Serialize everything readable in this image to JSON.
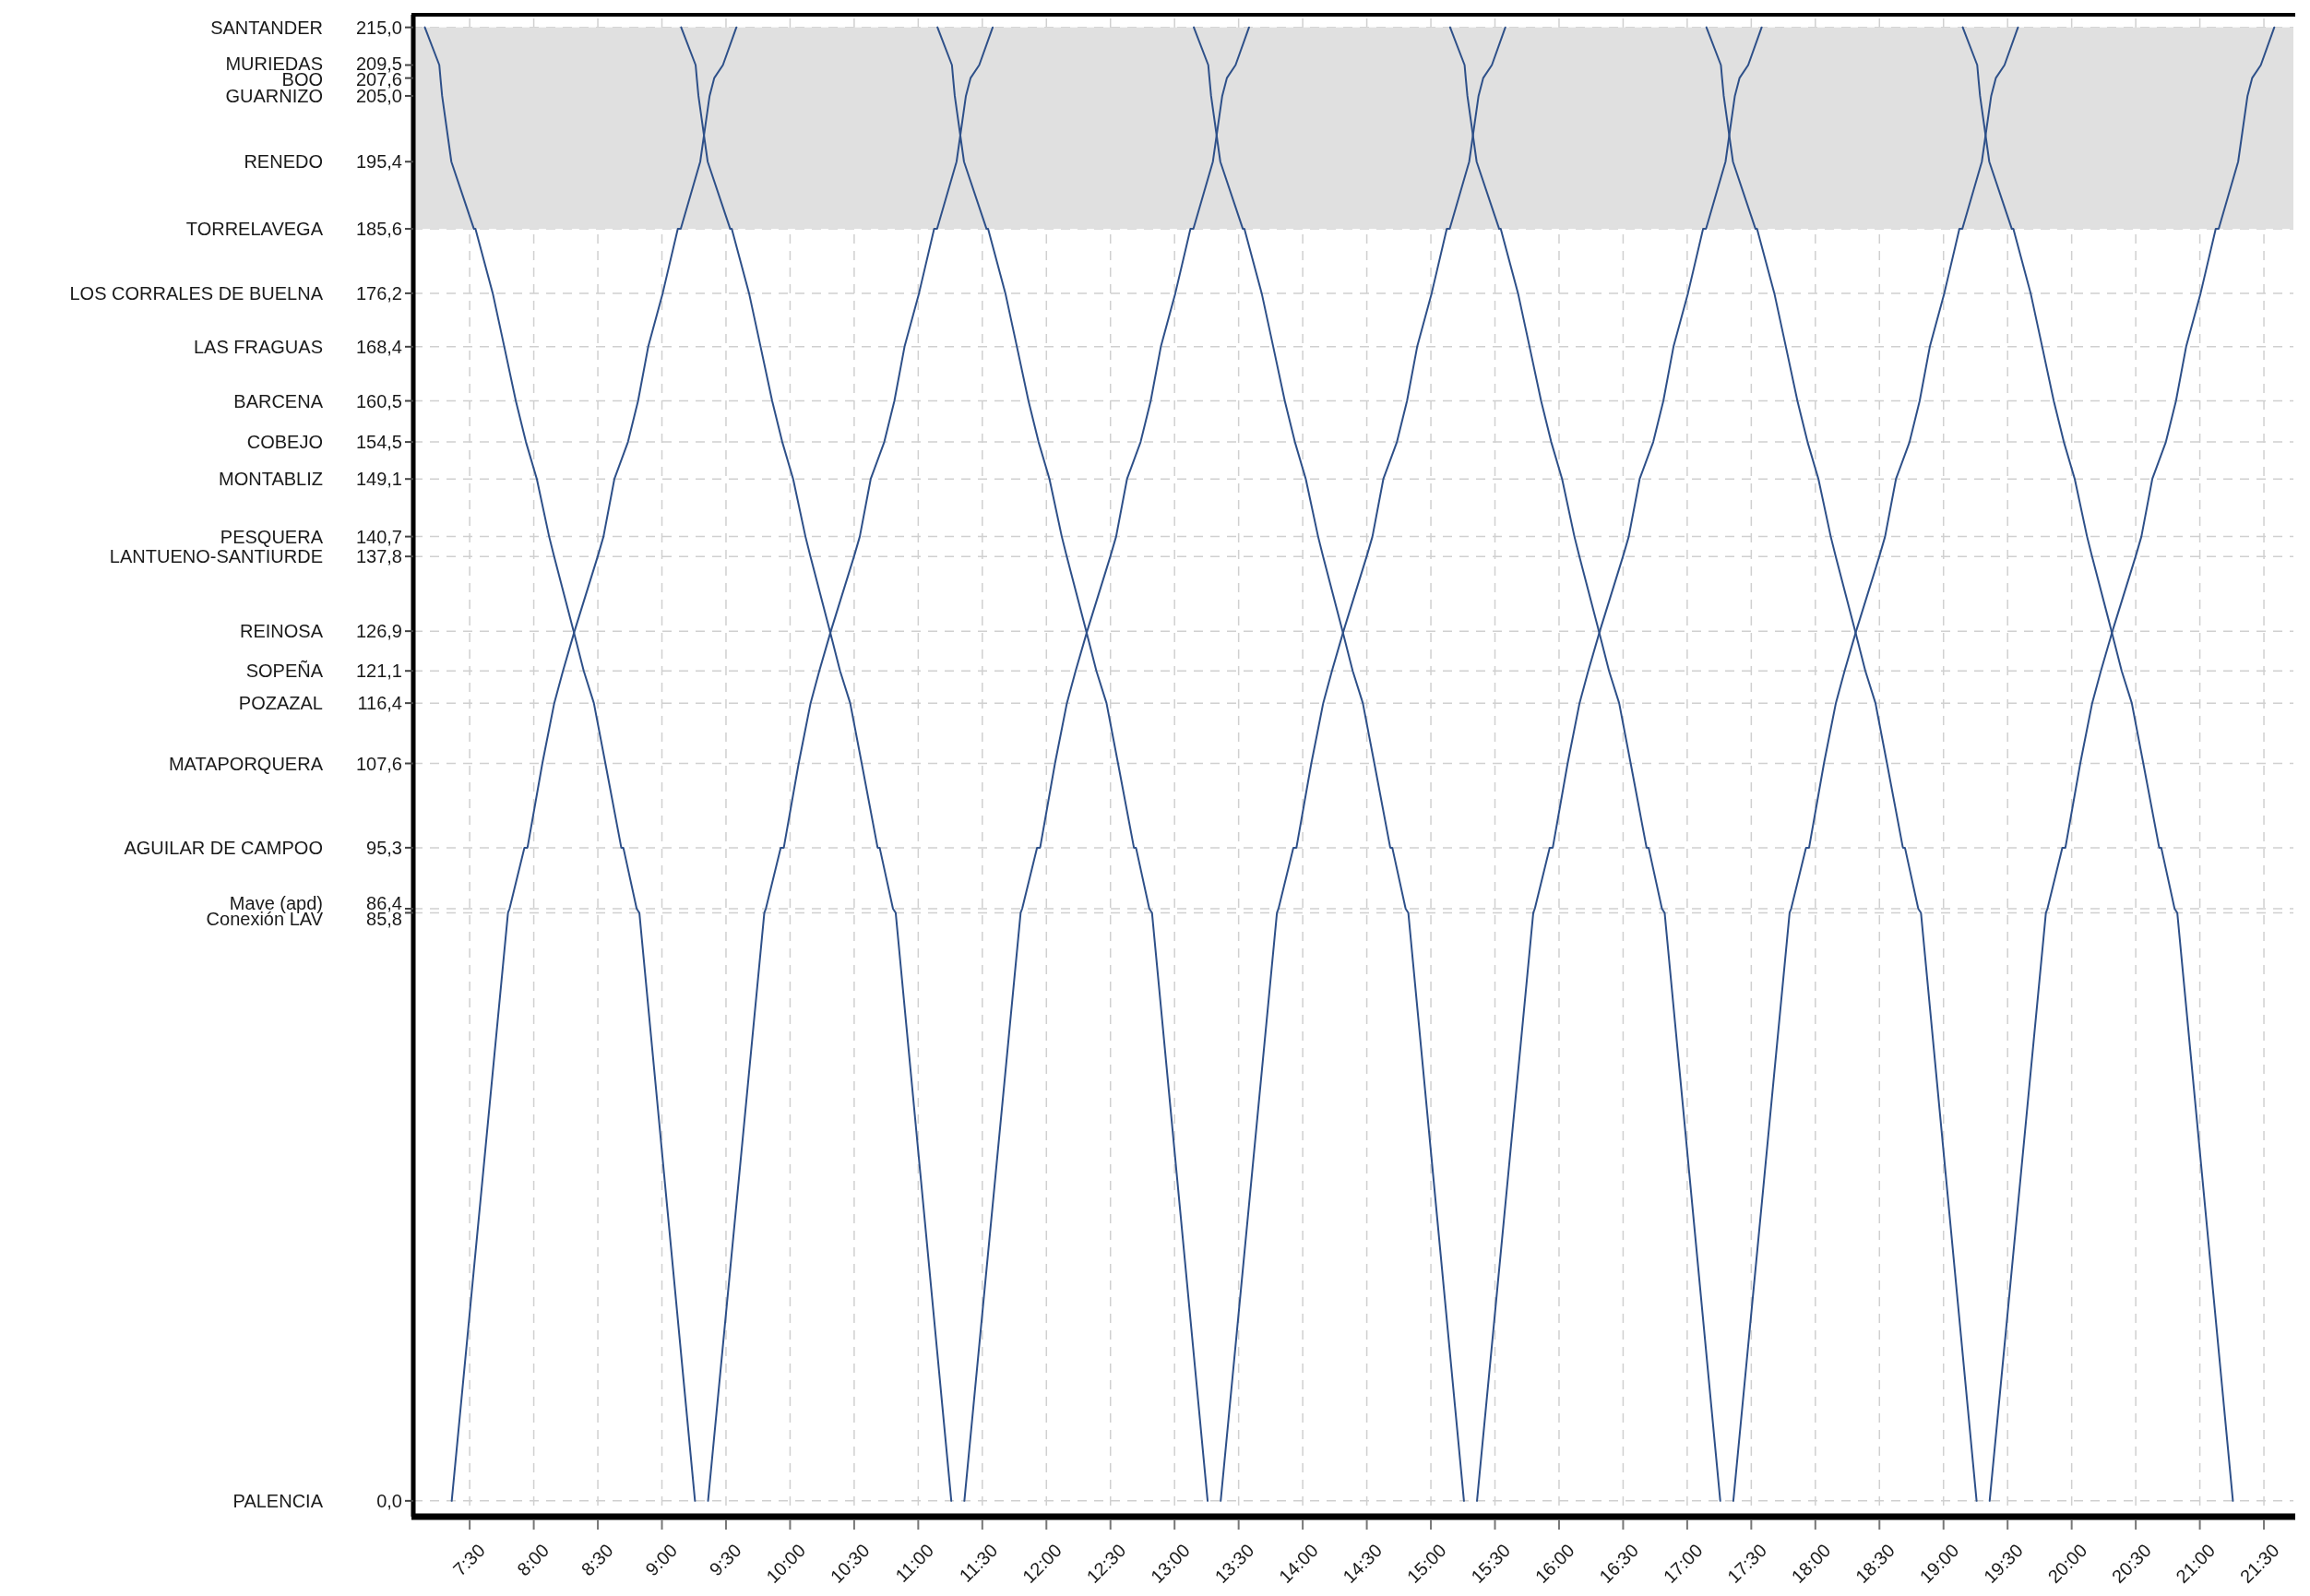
{
  "chart_data": {
    "type": "line",
    "xlim": [
      7.06,
      21.73
    ],
    "ylim": [
      -1.5,
      216.3
    ],
    "grid": true,
    "line_style": "solid",
    "marker": "none",
    "xticks": [
      {
        "value": 7.5,
        "label": "7:30"
      },
      {
        "value": 8,
        "label": "8:00"
      },
      {
        "value": 8.5,
        "label": "8:30"
      },
      {
        "value": 9,
        "label": "9:00"
      },
      {
        "value": 9.5,
        "label": "9:30"
      },
      {
        "value": 10,
        "label": "10:00"
      },
      {
        "value": 10.5,
        "label": "10:30"
      },
      {
        "value": 11,
        "label": "11:00"
      },
      {
        "value": 11.5,
        "label": "11:30"
      },
      {
        "value": 12,
        "label": "12:00"
      },
      {
        "value": 12.5,
        "label": "12:30"
      },
      {
        "value": 13,
        "label": "13:00"
      },
      {
        "value": 13.5,
        "label": "13:30"
      },
      {
        "value": 14,
        "label": "14:00"
      },
      {
        "value": 14.5,
        "label": "14:30"
      },
      {
        "value": 15,
        "label": "15:00"
      },
      {
        "value": 15.5,
        "label": "15:30"
      },
      {
        "value": 16,
        "label": "16:00"
      },
      {
        "value": 16.5,
        "label": "16:30"
      },
      {
        "value": 17,
        "label": "17:00"
      },
      {
        "value": 17.5,
        "label": "17:30"
      },
      {
        "value": 18,
        "label": "18:00"
      },
      {
        "value": 18.5,
        "label": "18:30"
      },
      {
        "value": 19,
        "label": "19:00"
      },
      {
        "value": 19.5,
        "label": "19:30"
      },
      {
        "value": 20,
        "label": "20:00"
      },
      {
        "value": 20.5,
        "label": "20:30"
      },
      {
        "value": 21,
        "label": "21:00"
      },
      {
        "value": 21.5,
        "label": "21:30"
      }
    ],
    "yticks": [
      {
        "value": 215,
        "label": "215,0"
      },
      {
        "value": 209.5,
        "label": "209,5"
      },
      {
        "value": 207.6,
        "label": "207,6"
      },
      {
        "value": 205,
        "label": "205,0"
      },
      {
        "value": 195.4,
        "label": "195,4"
      },
      {
        "value": 185.6,
        "label": "185,6"
      },
      {
        "value": 176.2,
        "label": "176,2"
      },
      {
        "value": 168.4,
        "label": "168,4"
      },
      {
        "value": 160.5,
        "label": "160,5"
      },
      {
        "value": 154.5,
        "label": "154,5"
      },
      {
        "value": 149.1,
        "label": "149,1"
      },
      {
        "value": 140.7,
        "label": "140,7"
      },
      {
        "value": 137.8,
        "label": "137,8"
      },
      {
        "value": 126.9,
        "label": "126,9"
      },
      {
        "value": 121.1,
        "label": "121,1"
      },
      {
        "value": 116.4,
        "label": "116,4"
      },
      {
        "value": 107.6,
        "label": "107,6"
      },
      {
        "value": 95.3,
        "label": "95,3"
      },
      {
        "value": 86.4,
        "label": "86,4"
      },
      {
        "value": 85.8,
        "label": "85,8"
      },
      {
        "value": 0,
        "label": "0,0"
      }
    ],
    "annotations": [
      "SANTANDER",
      "MURIEDAS",
      "BOO",
      "GUARNIZO",
      "RENEDO",
      "TORRELAVEGA",
      "LOS CORRALES DE BUELNA",
      "LAS FRAGUAS",
      "BARCENA",
      "COBEJO",
      "MONTABLIZ",
      "PESQUERA",
      "LANTUENO-SANTIURDE",
      "REINOSA",
      "SOPEÑA",
      "POZAZAL",
      "MATAPORQUERA",
      "AGUILAR DE CAMPOO",
      "Mave (apd)",
      "Conexión LAV",
      "PALENCIA"
    ],
    "bands": [
      {
        "axis": "y",
        "from": 185.6,
        "to": 215,
        "color": "#e0e0e0"
      }
    ],
    "series": [
      {
        "color": "#2e5089",
        "x": [
          7.15,
          7.263,
          7.272,
          7.285,
          7.357,
          7.533,
          7.545,
          7.68,
          7.77,
          7.86,
          7.939,
          8.024,
          8.12,
          8.159,
          8.311,
          8.39,
          8.469,
          8.559,
          8.683,
          8.699,
          8.803,
          8.824,
          9.258
        ],
        "values": [
          215,
          209.5,
          207.6,
          205,
          195.4,
          185.6,
          185.6,
          176.2,
          168.4,
          160.5,
          154.5,
          149.1,
          140.7,
          137.8,
          126.9,
          121.1,
          116.4,
          107.6,
          95.3,
          95.3,
          86.4,
          85.8,
          0
        ]
      },
      {
        "color": "#2e5089",
        "x": [
          9.15,
          9.263,
          9.272,
          9.285,
          9.357,
          9.533,
          9.545,
          9.68,
          9.77,
          9.86,
          9.939,
          10.024,
          10.12,
          10.159,
          10.311,
          10.39,
          10.469,
          10.559,
          10.683,
          10.699,
          10.803,
          10.824,
          11.258
        ],
        "values": [
          215,
          209.5,
          207.6,
          205,
          195.4,
          185.6,
          185.6,
          176.2,
          168.4,
          160.5,
          154.5,
          149.1,
          140.7,
          137.8,
          126.9,
          121.1,
          116.4,
          107.6,
          95.3,
          95.3,
          86.4,
          85.8,
          0
        ]
      },
      {
        "color": "#2e5089",
        "x": [
          11.15,
          11.263,
          11.272,
          11.285,
          11.357,
          11.533,
          11.545,
          11.68,
          11.77,
          11.86,
          11.939,
          12.024,
          12.12,
          12.159,
          12.311,
          12.39,
          12.469,
          12.559,
          12.683,
          12.699,
          12.803,
          12.824,
          13.258
        ],
        "values": [
          215,
          209.5,
          207.6,
          205,
          195.4,
          185.6,
          185.6,
          176.2,
          168.4,
          160.5,
          154.5,
          149.1,
          140.7,
          137.8,
          126.9,
          121.1,
          116.4,
          107.6,
          95.3,
          95.3,
          86.4,
          85.8,
          0
        ]
      },
      {
        "color": "#2e5089",
        "x": [
          13.15,
          13.263,
          13.272,
          13.285,
          13.357,
          13.533,
          13.545,
          13.68,
          13.77,
          13.86,
          13.939,
          14.024,
          14.12,
          14.159,
          14.311,
          14.39,
          14.469,
          14.559,
          14.683,
          14.699,
          14.803,
          14.824,
          15.258
        ],
        "values": [
          215,
          209.5,
          207.6,
          205,
          195.4,
          185.6,
          185.6,
          176.2,
          168.4,
          160.5,
          154.5,
          149.1,
          140.7,
          137.8,
          126.9,
          121.1,
          116.4,
          107.6,
          95.3,
          95.3,
          86.4,
          85.8,
          0
        ]
      },
      {
        "color": "#2e5089",
        "x": [
          15.15,
          15.263,
          15.272,
          15.285,
          15.357,
          15.533,
          15.545,
          15.68,
          15.77,
          15.86,
          15.939,
          16.024,
          16.12,
          16.159,
          16.311,
          16.39,
          16.469,
          16.559,
          16.683,
          16.699,
          16.803,
          16.824,
          17.258
        ],
        "values": [
          215,
          209.5,
          207.6,
          205,
          195.4,
          185.6,
          185.6,
          176.2,
          168.4,
          160.5,
          154.5,
          149.1,
          140.7,
          137.8,
          126.9,
          121.1,
          116.4,
          107.6,
          95.3,
          95.3,
          86.4,
          85.8,
          0
        ]
      },
      {
        "color": "#2e5089",
        "x": [
          17.15,
          17.263,
          17.272,
          17.285,
          17.357,
          17.533,
          17.545,
          17.68,
          17.77,
          17.86,
          17.939,
          18.024,
          18.12,
          18.159,
          18.311,
          18.39,
          18.469,
          18.559,
          18.683,
          18.699,
          18.803,
          18.824,
          19.258
        ],
        "values": [
          215,
          209.5,
          207.6,
          205,
          195.4,
          185.6,
          185.6,
          176.2,
          168.4,
          160.5,
          154.5,
          149.1,
          140.7,
          137.8,
          126.9,
          121.1,
          116.4,
          107.6,
          95.3,
          95.3,
          86.4,
          85.8,
          0
        ]
      },
      {
        "color": "#2e5089",
        "x": [
          19.15,
          19.263,
          19.272,
          19.285,
          19.357,
          19.533,
          19.545,
          19.68,
          19.77,
          19.86,
          19.939,
          20.024,
          20.12,
          20.159,
          20.311,
          20.39,
          20.469,
          20.559,
          20.683,
          20.699,
          20.803,
          20.824,
          21.258
        ],
        "values": [
          215,
          209.5,
          207.6,
          205,
          195.4,
          185.6,
          185.6,
          176.2,
          168.4,
          160.5,
          154.5,
          149.1,
          140.7,
          137.8,
          126.9,
          121.1,
          116.4,
          107.6,
          95.3,
          95.3,
          86.4,
          85.8,
          0
        ]
      },
      {
        "color": "#2e5089",
        "x": [
          7.36,
          7.799,
          7.811,
          7.927,
          7.951,
          8.067,
          8.16,
          8.228,
          8.318,
          8.499,
          8.544,
          8.629,
          8.735,
          8.814,
          8.893,
          9.006,
          9.124,
          9.147,
          9.299,
          9.372,
          9.408,
          9.476,
          9.581
        ],
        "values": [
          0,
          85.8,
          86.4,
          95.3,
          95.3,
          107.6,
          116.4,
          121.1,
          126.9,
          137.8,
          140.7,
          149.1,
          154.5,
          160.5,
          168.4,
          176.2,
          185.6,
          185.6,
          195.4,
          205,
          207.6,
          209.5,
          215
        ]
      },
      {
        "color": "#2e5089",
        "x": [
          9.36,
          9.799,
          9.811,
          9.927,
          9.951,
          10.067,
          10.16,
          10.228,
          10.318,
          10.499,
          10.544,
          10.629,
          10.735,
          10.814,
          10.893,
          11.006,
          11.124,
          11.147,
          11.299,
          11.372,
          11.408,
          11.476,
          11.581
        ],
        "values": [
          0,
          85.8,
          86.4,
          95.3,
          95.3,
          107.6,
          116.4,
          121.1,
          126.9,
          137.8,
          140.7,
          149.1,
          154.5,
          160.5,
          168.4,
          176.2,
          185.6,
          185.6,
          195.4,
          205,
          207.6,
          209.5,
          215
        ]
      },
      {
        "color": "#2e5089",
        "x": [
          11.36,
          11.799,
          11.811,
          11.927,
          11.951,
          12.067,
          12.16,
          12.228,
          12.318,
          12.499,
          12.544,
          12.629,
          12.735,
          12.814,
          12.893,
          13.006,
          13.124,
          13.147,
          13.299,
          13.372,
          13.408,
          13.476,
          13.581
        ],
        "values": [
          0,
          85.8,
          86.4,
          95.3,
          95.3,
          107.6,
          116.4,
          121.1,
          126.9,
          137.8,
          140.7,
          149.1,
          154.5,
          160.5,
          168.4,
          176.2,
          185.6,
          185.6,
          195.4,
          205,
          207.6,
          209.5,
          215
        ]
      },
      {
        "color": "#2e5089",
        "x": [
          13.36,
          13.799,
          13.811,
          13.927,
          13.951,
          14.067,
          14.16,
          14.228,
          14.318,
          14.499,
          14.544,
          14.629,
          14.735,
          14.814,
          14.893,
          15.006,
          15.124,
          15.147,
          15.299,
          15.372,
          15.408,
          15.476,
          15.581
        ],
        "values": [
          0,
          85.8,
          86.4,
          95.3,
          95.3,
          107.6,
          116.4,
          121.1,
          126.9,
          137.8,
          140.7,
          149.1,
          154.5,
          160.5,
          168.4,
          176.2,
          185.6,
          185.6,
          195.4,
          205,
          207.6,
          209.5,
          215
        ]
      },
      {
        "color": "#2e5089",
        "x": [
          15.36,
          15.799,
          15.811,
          15.927,
          15.951,
          16.067,
          16.16,
          16.228,
          16.318,
          16.499,
          16.544,
          16.629,
          16.735,
          16.814,
          16.893,
          17.006,
          17.124,
          17.147,
          17.299,
          17.372,
          17.408,
          17.476,
          17.581
        ],
        "values": [
          0,
          85.8,
          86.4,
          95.3,
          95.3,
          107.6,
          116.4,
          121.1,
          126.9,
          137.8,
          140.7,
          149.1,
          154.5,
          160.5,
          168.4,
          176.2,
          185.6,
          185.6,
          195.4,
          205,
          207.6,
          209.5,
          215
        ]
      },
      {
        "color": "#2e5089",
        "x": [
          17.36,
          17.799,
          17.811,
          17.927,
          17.951,
          18.067,
          18.16,
          18.228,
          18.318,
          18.499,
          18.544,
          18.629,
          18.735,
          18.814,
          18.893,
          19.006,
          19.124,
          19.147,
          19.299,
          19.372,
          19.408,
          19.476,
          19.581
        ],
        "values": [
          0,
          85.8,
          86.4,
          95.3,
          95.3,
          107.6,
          116.4,
          121.1,
          126.9,
          137.8,
          140.7,
          149.1,
          154.5,
          160.5,
          168.4,
          176.2,
          185.6,
          185.6,
          195.4,
          205,
          207.6,
          209.5,
          215
        ]
      },
      {
        "color": "#2e5089",
        "x": [
          19.36,
          19.799,
          19.811,
          19.927,
          19.951,
          20.067,
          20.16,
          20.228,
          20.318,
          20.499,
          20.544,
          20.629,
          20.735,
          20.814,
          20.893,
          21.006,
          21.124,
          21.147,
          21.299,
          21.372,
          21.408,
          21.476,
          21.581
        ],
        "values": [
          0,
          85.8,
          86.4,
          95.3,
          95.3,
          107.6,
          116.4,
          121.1,
          126.9,
          137.8,
          140.7,
          149.1,
          154.5,
          160.5,
          168.4,
          176.2,
          185.6,
          185.6,
          195.4,
          205,
          207.6,
          209.5,
          215
        ]
      }
    ]
  }
}
